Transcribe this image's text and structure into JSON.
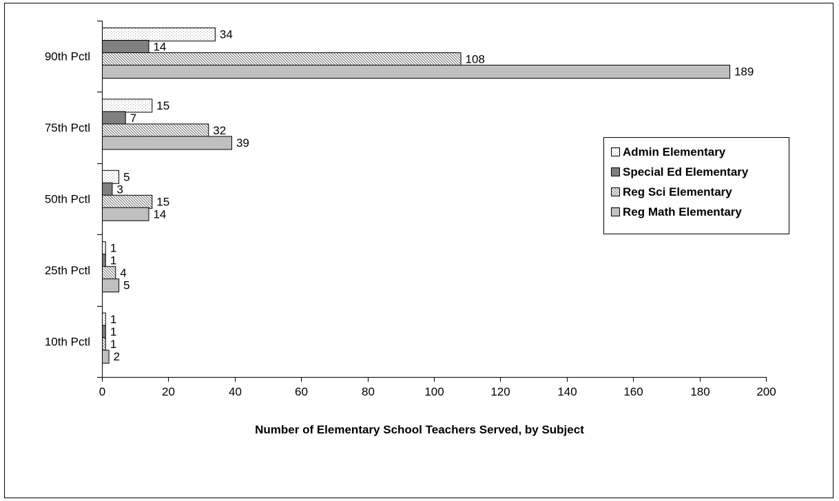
{
  "chart_data": {
    "type": "bar",
    "orientation": "horizontal",
    "categories": [
      "90th Pctl",
      "75th Pctl",
      "50th Pctl",
      "25th Pctl",
      "10th Pctl"
    ],
    "series": [
      {
        "name": "Admin Elementary",
        "values": [
          34,
          15,
          5,
          1,
          1
        ],
        "labels": [
          "34",
          "15",
          "5",
          "1",
          "1"
        ],
        "fill": "#ffffff",
        "pattern": "dots"
      },
      {
        "name": "Special Ed Elementary",
        "values": [
          14,
          7,
          3,
          1,
          1
        ],
        "labels": [
          "14",
          "7",
          "3",
          "1",
          "1"
        ],
        "fill": "#808080",
        "pattern": "solid"
      },
      {
        "name": "Reg Sci Elementary",
        "values": [
          108,
          32,
          15,
          4,
          1
        ],
        "labels": [
          "108",
          "32",
          "15",
          "4",
          "1"
        ],
        "fill": "#ffffff",
        "pattern": "diagonal-hatch"
      },
      {
        "name": "Reg Math Elementary",
        "values": [
          189,
          39,
          14,
          5,
          2
        ],
        "labels": [
          "189",
          "39",
          "14",
          "5",
          "2"
        ],
        "fill": "#c0c0c0",
        "pattern": "solid"
      }
    ],
    "xlim": [
      0,
      200
    ],
    "xticks": [
      "0",
      "20",
      "40",
      "60",
      "80",
      "100",
      "120",
      "140",
      "160",
      "180",
      "200"
    ],
    "xlabel": "Number of Elementary School Teachers Served, by Subject",
    "ylabel": "",
    "title": "",
    "grid": false,
    "legend": "right"
  }
}
